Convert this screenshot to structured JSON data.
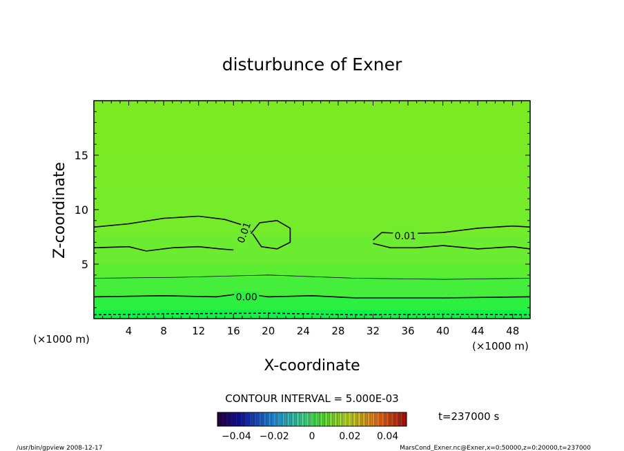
{
  "chart_data": {
    "type": "heatmap",
    "title": "disturbunce of Exner",
    "xlabel": "X-coordinate",
    "ylabel": "Z-coordinate",
    "x_unit_left": "(×1000 m)",
    "x_unit_right": "(×1000 m)",
    "xlim": [
      0,
      50
    ],
    "ylim": [
      0,
      20
    ],
    "x_ticks": [
      "4",
      "8",
      "12",
      "16",
      "20",
      "24",
      "28",
      "32",
      "36",
      "40",
      "44",
      "48"
    ],
    "y_ticks": [
      "5",
      "10",
      "15"
    ],
    "contour_interval_label": "CONTOUR INTERVAL = 5.000E-03",
    "time_label": "t=237000 s",
    "colorbar_ticks": [
      "−0.04",
      "−0.02",
      "0",
      "0.02",
      "0.04"
    ],
    "colorbar_range": [
      -0.05,
      0.05
    ],
    "contour_labels": [
      "0.01",
      "0.01",
      "0.00"
    ],
    "contours": [
      {
        "level": 0.01,
        "points": [
          [
            0,
            8.4
          ],
          [
            4,
            8.7
          ],
          [
            8,
            9.2
          ],
          [
            12,
            9.4
          ],
          [
            15,
            9.1
          ],
          [
            17,
            8.6
          ],
          [
            18,
            8.0
          ]
        ]
      },
      {
        "level": 0.01,
        "points": [
          [
            0,
            6.5
          ],
          [
            4,
            6.6
          ],
          [
            6,
            6.2
          ],
          [
            9,
            6.5
          ],
          [
            12,
            6.6
          ],
          [
            14.5,
            6.4
          ],
          [
            16,
            6.3
          ]
        ]
      },
      {
        "level": 0.01,
        "points": [
          [
            18,
            7.8
          ],
          [
            19,
            8.8
          ],
          [
            21,
            9.0
          ],
          [
            22.5,
            8.3
          ],
          [
            22.5,
            7.0
          ],
          [
            21,
            6.4
          ],
          [
            19.2,
            6.6
          ],
          [
            18.2,
            7.8
          ]
        ]
      },
      {
        "level": 0.01,
        "points": [
          [
            32,
            7.2
          ],
          [
            33,
            7.9
          ],
          [
            36,
            7.8
          ],
          [
            40,
            7.9
          ],
          [
            44,
            8.3
          ],
          [
            48,
            8.5
          ],
          [
            50,
            8.4
          ]
        ]
      },
      {
        "level": 0.01,
        "points": [
          [
            32,
            6.9
          ],
          [
            34,
            6.5
          ],
          [
            37,
            6.5
          ],
          [
            40,
            6.7
          ],
          [
            44,
            6.4
          ],
          [
            48,
            6.6
          ],
          [
            50,
            6.4
          ]
        ]
      },
      {
        "level": 0.0,
        "points": [
          [
            0,
            2.0
          ],
          [
            8,
            2.1
          ],
          [
            14,
            2.0
          ],
          [
            17,
            2.3
          ],
          [
            20,
            2.0
          ],
          [
            25,
            2.1
          ],
          [
            30,
            1.9
          ],
          [
            40,
            1.9
          ],
          [
            50,
            2.0
          ]
        ]
      },
      {
        "level": 0.005,
        "points": [
          [
            0,
            3.7
          ],
          [
            10,
            3.8
          ],
          [
            20,
            4.0
          ],
          [
            30,
            3.7
          ],
          [
            40,
            3.6
          ],
          [
            50,
            3.7
          ]
        ]
      },
      {
        "level": -0.005,
        "points": [
          [
            0,
            0.35
          ],
          [
            10,
            0.45
          ],
          [
            20,
            0.5
          ],
          [
            30,
            0.35
          ],
          [
            40,
            0.4
          ],
          [
            50,
            0.35
          ]
        ]
      }
    ],
    "field_bands": [
      {
        "z_top": 20,
        "color": "#7cea22"
      },
      {
        "z_top": 17,
        "color": "#7aea25"
      },
      {
        "z_top": 15,
        "color": "#78eb27"
      },
      {
        "z_top": 12,
        "color": "#76eb2a"
      },
      {
        "z_top": 9.6,
        "color": "#74ec2c"
      },
      {
        "z_top": 7.6,
        "color": "#6cec30"
      },
      {
        "z_top": 5.0,
        "color": "#5aed30"
      },
      {
        "z_top": 3.8,
        "color": "#44ee3a"
      },
      {
        "z_top": 2.0,
        "color": "#2cf040"
      },
      {
        "z_top": 0.8,
        "color": "#10f24a"
      }
    ]
  },
  "footer": {
    "left": "/usr/bin/gpview   2008-12-17",
    "right": "MarsCond_Exner.nc@Exner,x=0:50000,z=0:20000,t=237000"
  }
}
